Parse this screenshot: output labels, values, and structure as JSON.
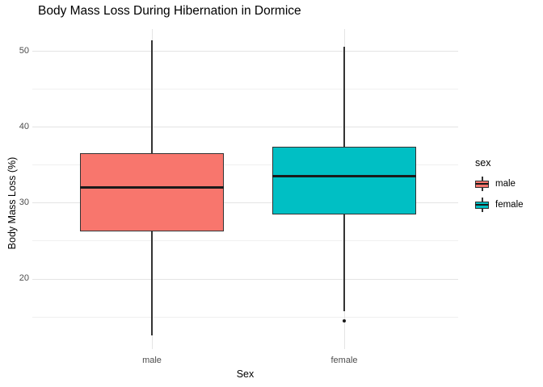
{
  "title": "Body Mass Loss During Hibernation in Dormice",
  "legend": {
    "title": "sex",
    "items": [
      {
        "label": "male",
        "color": "#F8766D"
      },
      {
        "label": "female",
        "color": "#00BFC4"
      }
    ]
  },
  "chart_data": {
    "type": "boxplot",
    "title": "Body Mass Loss During Hibernation in Dormice",
    "xlabel": "Sex",
    "ylabel": "Body Mass Loss (%)",
    "categories": [
      "male",
      "female"
    ],
    "ylim": [
      10.7,
      52.9
    ],
    "y_ticks": [
      20,
      30,
      40,
      50
    ],
    "y_minor_ticks": [
      15,
      25,
      35,
      45
    ],
    "grid": true,
    "legend_position": "right",
    "legend_title": "sex",
    "series": [
      {
        "name": "male",
        "color": "#F8766D",
        "whisker_low": 12.5,
        "q1": 26.2,
        "median": 32.0,
        "q3": 36.5,
        "whisker_high": 51.4,
        "outliers": []
      },
      {
        "name": "female",
        "color": "#00BFC4",
        "whisker_low": 15.7,
        "q1": 28.4,
        "median": 33.5,
        "q3": 37.4,
        "whisker_high": 50.6,
        "outliers": [
          14.4
        ]
      }
    ],
    "style": {
      "box_border_color": "#333333",
      "median_color": "#1a1a1a",
      "whisker_color": "#333333",
      "outlier_color": "#1a1a1a",
      "grid_major_color": "#E4E4E4",
      "grid_minor_color": "#F0F0F0",
      "tick_label_color": "#4D4D4D"
    }
  }
}
